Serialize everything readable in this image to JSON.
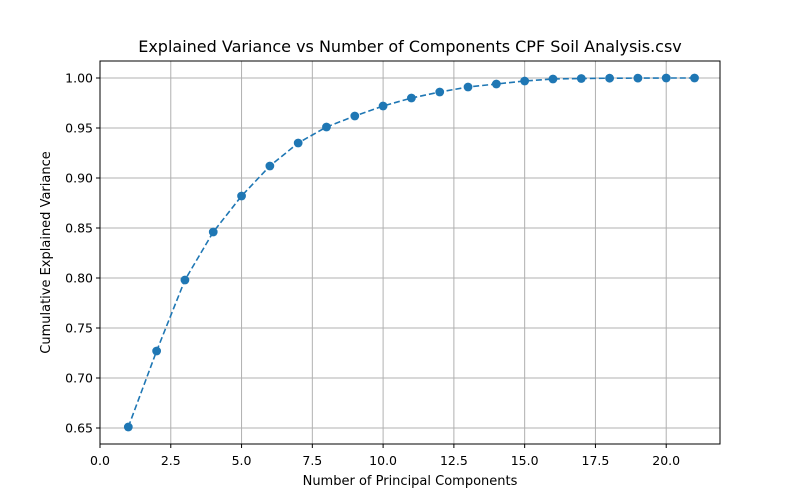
{
  "chart_data": {
    "type": "line",
    "title": "Explained Variance vs Number of Components CPF Soil Analysis.csv",
    "xlabel": "Number of Principal Components",
    "ylabel": "Cumulative Explained Variance",
    "xlim": [
      0,
      21.9
    ],
    "ylim": [
      0.634,
      1.017
    ],
    "grid": true,
    "line_style": "dashed",
    "marker": "circle",
    "color": "#1f77b4",
    "x_ticks": [
      0,
      2.5,
      5,
      7.5,
      10,
      12.5,
      15,
      17.5,
      20
    ],
    "x_tick_labels": [
      "0.0",
      "2.5",
      "5.0",
      "7.5",
      "10.0",
      "12.5",
      "15.0",
      "17.5",
      "20.0"
    ],
    "y_ticks": [
      0.65,
      0.7,
      0.75,
      0.8,
      0.85,
      0.9,
      0.95,
      1.0
    ],
    "y_tick_labels": [
      "0.65",
      "0.70",
      "0.75",
      "0.80",
      "0.85",
      "0.90",
      "0.95",
      "1.00"
    ],
    "series": [
      {
        "x": [
          1,
          2,
          3,
          4,
          5,
          6,
          7,
          8,
          9,
          10,
          11,
          12,
          13,
          14,
          15,
          16,
          17,
          18,
          19,
          20,
          21
        ],
        "y": [
          0.651,
          0.727,
          0.798,
          0.846,
          0.882,
          0.912,
          0.935,
          0.951,
          0.962,
          0.972,
          0.98,
          0.986,
          0.991,
          0.994,
          0.997,
          0.999,
          0.9995,
          0.9998,
          0.9999,
          1.0,
          1.0
        ]
      }
    ]
  }
}
